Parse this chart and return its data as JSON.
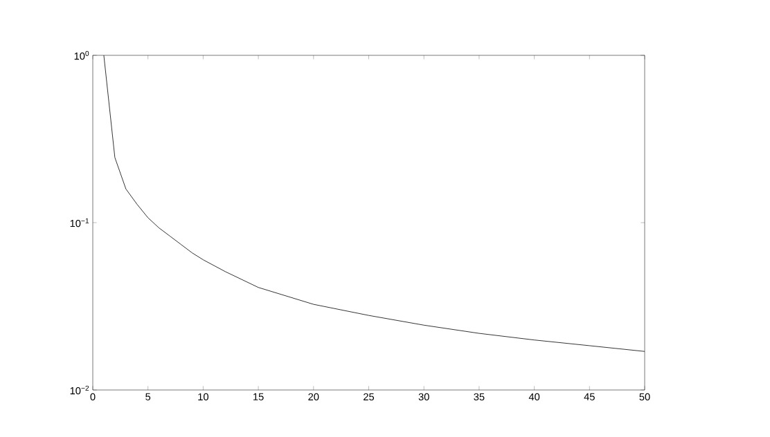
{
  "chart_data": {
    "type": "line",
    "log": "y",
    "x": [
      1,
      2,
      3,
      4,
      5,
      6,
      7,
      8,
      9,
      10,
      12,
      15,
      20,
      25,
      30,
      35,
      40,
      45,
      50
    ],
    "series": [
      {
        "color": "#000000",
        "values": [
          1.0,
          0.245,
          0.159,
          0.129,
          0.107,
          0.093,
          0.083,
          0.074,
          0.066,
          0.06,
          0.051,
          0.041,
          0.0325,
          0.0279,
          0.0244,
          0.0218,
          0.0199,
          0.0184,
          0.017
        ]
      }
    ],
    "xlim": [
      0,
      50
    ],
    "xticks": [
      0,
      5,
      10,
      15,
      20,
      25,
      30,
      35,
      40,
      45,
      50
    ],
    "ylim": [
      0.01,
      1
    ],
    "yticks": [
      {
        "value": 0.01,
        "label": "10$^{−2}$"
      },
      {
        "value": 0.1,
        "label": "10$^{−1}$"
      },
      {
        "value": 1,
        "label": "10$^{0}$"
      }
    ],
    "marker": "none",
    "line_style": "solid",
    "grid": false
  }
}
